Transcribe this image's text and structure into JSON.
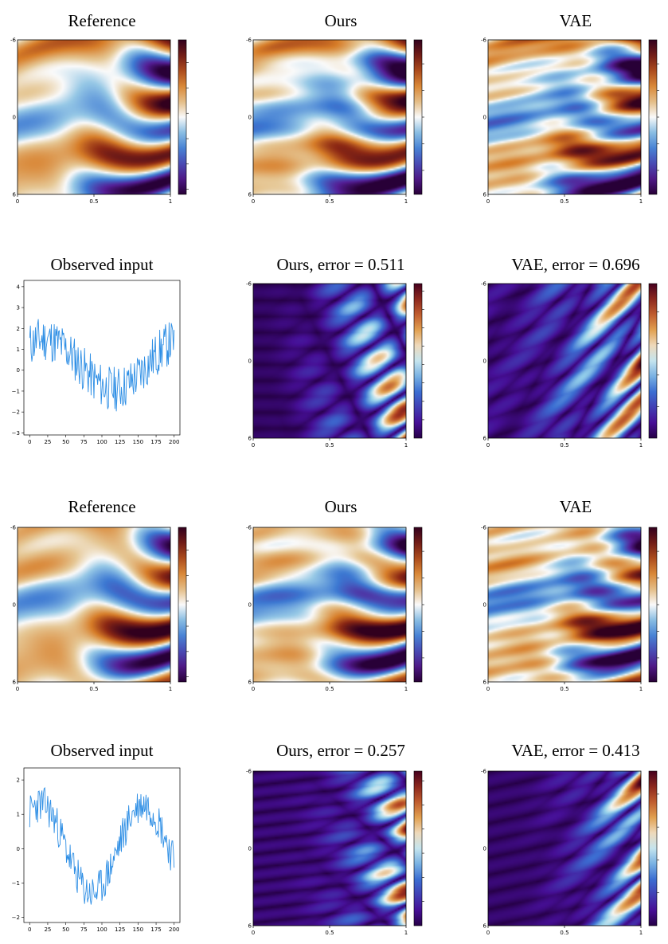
{
  "chart_data": [
    {
      "id": "r1c1",
      "type": "heatmap",
      "title": "Reference",
      "field": "ref1",
      "cmap": "diverging",
      "xticks": [
        "0",
        "0.5",
        "1"
      ],
      "yticks": [
        "-6",
        "0",
        "6"
      ],
      "cbar_ticks": [
        {
          "v": 2,
          "label": "2"
        },
        {
          "v": 1,
          "label": "1"
        },
        {
          "v": 0,
          "label": "0"
        },
        {
          "v": -1,
          "label": "−1"
        },
        {
          "v": -2,
          "label": "−2"
        },
        {
          "v": -3,
          "label": "−3"
        }
      ],
      "crange": [
        -3.2,
        2.9
      ]
    },
    {
      "id": "r1c2",
      "type": "heatmap",
      "title": "Ours",
      "field": "ref1b",
      "cmap": "diverging",
      "xticks": [
        "0",
        "0.5",
        "1"
      ],
      "yticks": [
        "-6",
        "0",
        "6"
      ],
      "cbar_ticks": [
        {
          "v": 2,
          "label": "2"
        },
        {
          "v": 1,
          "label": "1"
        },
        {
          "v": 0,
          "label": "0"
        },
        {
          "v": -1,
          "label": "−1"
        },
        {
          "v": -2,
          "label": "−2"
        }
      ],
      "crange": [
        -2.9,
        2.9
      ]
    },
    {
      "id": "r1c3",
      "type": "heatmap",
      "title": "VAE",
      "field": "ref1c",
      "cmap": "diverging",
      "xticks": [
        "0",
        "0.5",
        "1"
      ],
      "yticks": [
        "-6",
        "0",
        "6"
      ],
      "cbar_ticks": [
        {
          "v": 2,
          "label": "2"
        },
        {
          "v": 1,
          "label": "1"
        },
        {
          "v": 0,
          "label": "0"
        },
        {
          "v": -1,
          "label": "−"
        },
        {
          "v": -2,
          "label": "−"
        }
      ],
      "crange": [
        -2.9,
        2.9
      ]
    },
    {
      "id": "r2c1",
      "type": "line",
      "title": "Observed input",
      "seed": 11,
      "shape": "obs1",
      "xticks": [
        0,
        25,
        50,
        75,
        100,
        125,
        150,
        175,
        200
      ],
      "yticks": [
        4,
        3,
        2,
        1,
        0,
        -1,
        -2,
        -3
      ],
      "xlim": [
        -8,
        208
      ],
      "ylim": [
        -3.1,
        4.3
      ],
      "color": "#2f8fe5"
    },
    {
      "id": "r2c2",
      "type": "heatmap",
      "title": "Ours, error = 0.511",
      "field": "err1",
      "cmap": "error",
      "xticks": [
        "0",
        "0.5",
        "1"
      ],
      "yticks": [
        "-6",
        "0",
        "6"
      ],
      "cbar_ticks": [
        {
          "v": 4,
          "label": "4.0"
        },
        {
          "v": 3.5,
          "label": "3.5"
        },
        {
          "v": 3,
          "label": "3.0"
        },
        {
          "v": 2.5,
          "label": "2.5"
        },
        {
          "v": 2,
          "label": "2.0"
        },
        {
          "v": 1.5,
          "label": "1.5"
        },
        {
          "v": 1,
          "label": "1.0"
        },
        {
          "v": 0.5,
          "label": "0.5"
        }
      ],
      "crange": [
        0,
        4.2
      ]
    },
    {
      "id": "r2c3",
      "type": "heatmap",
      "title": "VAE, error = 0.696",
      "field": "err1b",
      "cmap": "error",
      "xticks": [
        "0",
        "0.5",
        "1"
      ],
      "yticks": [
        "-6",
        "0",
        "6"
      ],
      "cbar_ticks": [
        {
          "v": 4,
          "label": "4"
        },
        {
          "v": 3,
          "label": "3"
        },
        {
          "v": 2,
          "label": "2"
        },
        {
          "v": 1,
          "label": "1"
        }
      ],
      "crange": [
        0,
        4.9
      ]
    },
    {
      "id": "r3c1",
      "type": "heatmap",
      "title": "Reference",
      "field": "ref2",
      "cmap": "diverging",
      "xticks": [
        "0",
        "0.5",
        "1"
      ],
      "yticks": [
        "-6",
        "0",
        "6"
      ],
      "cbar_ticks": [
        {
          "v": 2,
          "label": "2"
        },
        {
          "v": 1,
          "label": "1"
        },
        {
          "v": 0,
          "label": "0"
        },
        {
          "v": -1,
          "label": "−1"
        },
        {
          "v": -2,
          "label": "−2"
        },
        {
          "v": -3,
          "label": "−3"
        }
      ],
      "crange": [
        -3.2,
        2.9
      ]
    },
    {
      "id": "r3c2",
      "type": "heatmap",
      "title": "Ours",
      "field": "ref2b",
      "cmap": "diverging",
      "xticks": [
        "0",
        "0.5",
        "1"
      ],
      "yticks": [
        "-6",
        "0",
        "6"
      ],
      "cbar_ticks": [
        {
          "v": 2,
          "label": "2"
        },
        {
          "v": 1,
          "label": "1"
        },
        {
          "v": 0,
          "label": "0"
        },
        {
          "v": -1,
          "label": "−1"
        },
        {
          "v": -2,
          "label": "−2"
        }
      ],
      "crange": [
        -2.9,
        2.9
      ]
    },
    {
      "id": "r3c3",
      "type": "heatmap",
      "title": "VAE",
      "field": "ref2c",
      "cmap": "diverging",
      "xticks": [
        "0",
        "0.5",
        "1"
      ],
      "yticks": [
        "-6",
        "0",
        "6"
      ],
      "cbar_ticks": [
        {
          "v": 2,
          "label": "2"
        },
        {
          "v": 1,
          "label": "1"
        },
        {
          "v": 0,
          "label": "0"
        },
        {
          "v": -1,
          "label": "−"
        },
        {
          "v": -2,
          "label": "−"
        }
      ],
      "crange": [
        -2.9,
        2.9
      ]
    },
    {
      "id": "r4c1",
      "type": "line",
      "title": "Observed input",
      "seed": 23,
      "shape": "obs2",
      "xticks": [
        0,
        25,
        50,
        75,
        100,
        125,
        150,
        175,
        200
      ],
      "yticks": [
        2,
        1,
        0,
        -1,
        -2
      ],
      "xlim": [
        -8,
        208
      ],
      "ylim": [
        -2.15,
        2.35
      ],
      "color": "#2f8fe5"
    },
    {
      "id": "r4c2",
      "type": "heatmap",
      "title": "Ours, error = 0.257",
      "field": "err2",
      "cmap": "error",
      "xticks": [
        "0",
        "0.5",
        "1"
      ],
      "yticks": [
        "-6",
        "0",
        "6"
      ],
      "cbar_ticks": [
        {
          "v": 3,
          "label": "3.0"
        },
        {
          "v": 2.5,
          "label": "2.5"
        },
        {
          "v": 2,
          "label": "2.0"
        },
        {
          "v": 1.5,
          "label": "1.5"
        },
        {
          "v": 1,
          "label": "1.0"
        },
        {
          "v": 0.5,
          "label": "0.5"
        }
      ],
      "crange": [
        0,
        3.2
      ]
    },
    {
      "id": "r4c3",
      "type": "heatmap",
      "title": "VAE, error = 0.413",
      "field": "err2b",
      "cmap": "error",
      "xticks": [
        "0",
        "0.5",
        "1"
      ],
      "yticks": [
        "-6",
        "0",
        "6"
      ],
      "cbar_ticks": [
        {
          "v": 4,
          "label": "4"
        },
        {
          "v": 3,
          "label": "3"
        },
        {
          "v": 2,
          "label": "2"
        },
        {
          "v": 1,
          "label": "1"
        }
      ],
      "crange": [
        0,
        4.7
      ]
    }
  ]
}
